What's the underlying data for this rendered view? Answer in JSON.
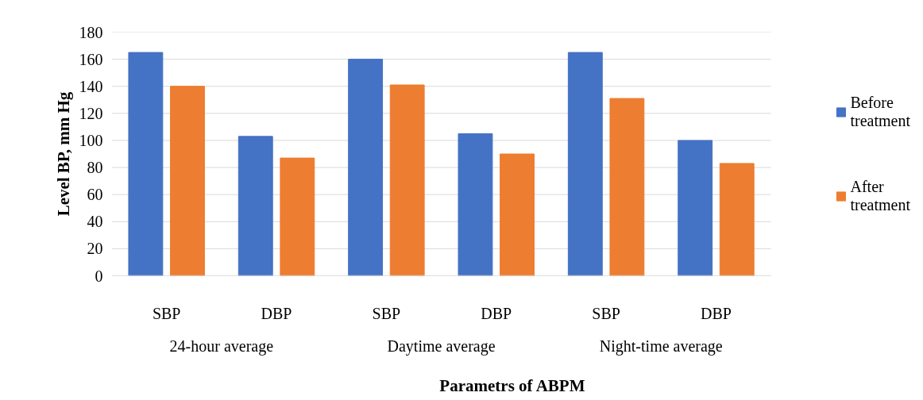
{
  "chart_data": {
    "type": "bar",
    "categories": [
      "SBP",
      "DBP",
      "SBP",
      "DBP",
      "SBP",
      "DBP"
    ],
    "annotations": [
      "24-hour average",
      "Daytime average",
      "Night-time average"
    ],
    "xlabel": "Parametrs of ABPM",
    "ylabel": "Level BP, mm Hg",
    "series": [
      {
        "name": "Before treatment",
        "color": "#4472c4",
        "values": [
          165,
          103,
          160,
          105,
          165,
          100
        ]
      },
      {
        "name": "After treatment",
        "color": "#ed7d31",
        "values": [
          140,
          87,
          141,
          90,
          131,
          83
        ]
      }
    ],
    "ylim": [
      0,
      180
    ],
    "yticks": [
      0,
      20,
      40,
      60,
      80,
      100,
      120,
      140,
      160,
      180
    ],
    "grid": "y",
    "legend": "right"
  }
}
